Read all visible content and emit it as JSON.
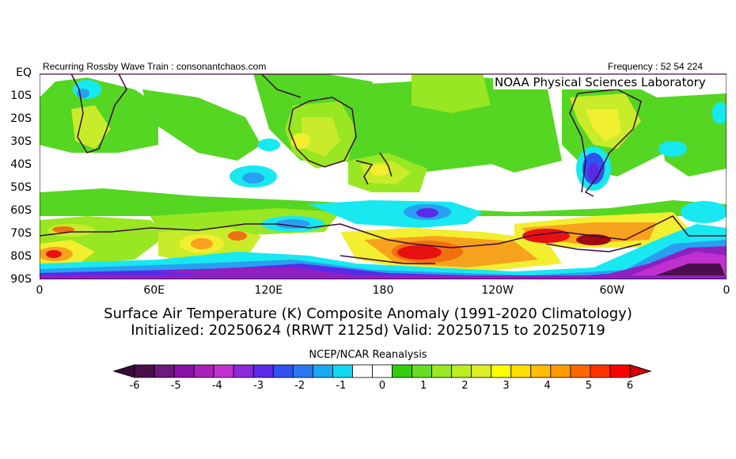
{
  "header": {
    "left": "Recurring Rossby Wave Train : consonantchaos.com",
    "right": "Frequency : 52 54 224",
    "org": "NOAA Physical Sciences Laboratory"
  },
  "axes": {
    "lat_labels": [
      "EQ",
      "10S",
      "20S",
      "30S",
      "40S",
      "50S",
      "60S",
      "70S",
      "80S",
      "90S"
    ],
    "lon_labels": [
      "0",
      "60E",
      "120E",
      "180",
      "120W",
      "60W",
      "0"
    ]
  },
  "titles": {
    "line1": "Surface Air Temperature (K) Composite Anomaly (1991-2020 Climatology)",
    "line2": "Initialized: 20250624 (RRWT 2125d) Valid: 20250715 to 20250719"
  },
  "colorbar": {
    "title": "NCEP/NCAR Reanalysis",
    "tick_labels": [
      "-6",
      "-5",
      "-4",
      "-3",
      "-2",
      "-1",
      "0",
      "1",
      "2",
      "3",
      "4",
      "5",
      "6"
    ],
    "under_color": "#3a0a3a",
    "over_color": "#d40000",
    "colors": [
      "#4a0f4a",
      "#6a1a7a",
      "#8a10a8",
      "#a820b8",
      "#c030d0",
      "#8a2ad8",
      "#5a2ae8",
      "#3050f0",
      "#2a78f0",
      "#1aa8f0",
      "#10d8f0",
      "#ffffff",
      "#ffffff",
      "#33cc11",
      "#66dd22",
      "#99e622",
      "#bbee22",
      "#ddee22",
      "#ffff00",
      "#ffdd00",
      "#ffbb00",
      "#ff9900",
      "#ff6600",
      "#ff3300",
      "#ff0000"
    ]
  },
  "map_colors": {
    "green": "#55d622",
    "ltgreen": "#99e622",
    "yellowgreen": "#c8ec2a",
    "yellow": "#f2ee30",
    "orange": "#f7a21c",
    "orange2": "#f07010",
    "red": "#e81010",
    "darkred": "#a00a14",
    "cyan": "#18e8f0",
    "skyblue": "#28a0f0",
    "blue": "#3050f0",
    "indigo": "#5a2ae8",
    "purple": "#9020c0",
    "magenta": "#c030d0",
    "deeppurple": "#4a0f4a",
    "coast": "#3a0a3a"
  }
}
